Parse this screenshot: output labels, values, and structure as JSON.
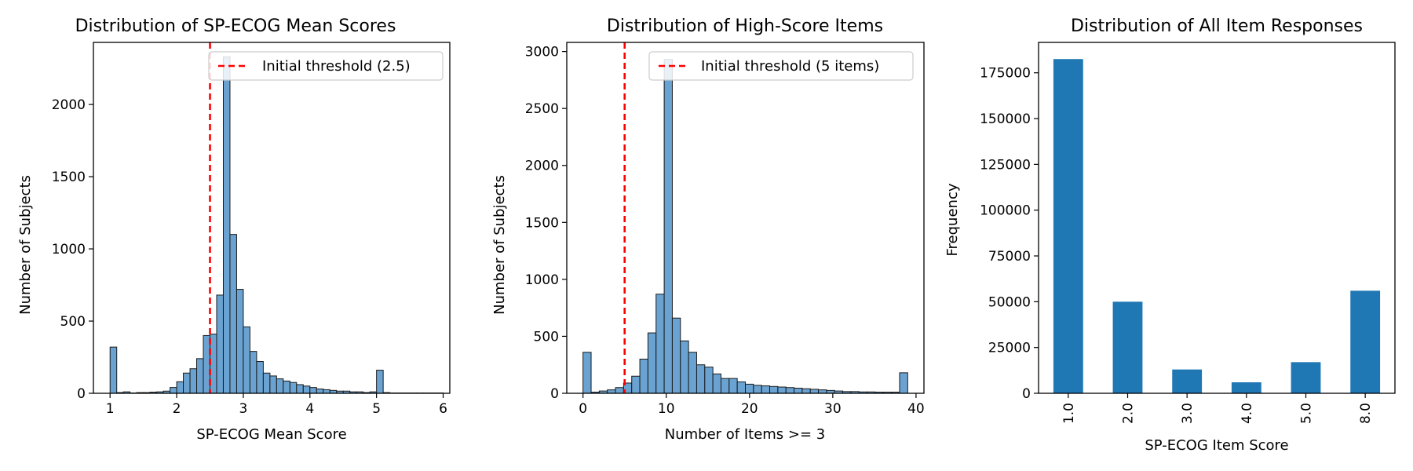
{
  "chart_data": [
    {
      "type": "bar",
      "title": "Distribution of SP-ECOG Mean Scores",
      "xlabel": "SP-ECOG Mean Score",
      "ylabel": "Number of Subjects",
      "xlim": [
        0.75,
        6.1
      ],
      "ylim": [
        0,
        2430
      ],
      "xticks": [
        1,
        2,
        3,
        4,
        5,
        6
      ],
      "yticks": [
        0,
        500,
        1000,
        1500,
        2000
      ],
      "bin_start": 1.0,
      "bin_width": 0.1,
      "values": [
        320,
        5,
        10,
        2,
        5,
        5,
        8,
        10,
        15,
        40,
        80,
        140,
        170,
        240,
        400,
        410,
        680,
        2330,
        1100,
        720,
        460,
        290,
        220,
        140,
        120,
        100,
        85,
        75,
        60,
        50,
        40,
        30,
        25,
        20,
        15,
        15,
        10,
        10,
        5,
        10,
        160,
        5,
        2,
        2,
        2,
        2,
        2,
        2,
        2,
        2
      ],
      "threshold": {
        "x": 2.5,
        "label": "Initial threshold (2.5)"
      },
      "grid": false,
      "legend_placement": "top-right",
      "colors": {
        "bar": "#6aa3d1",
        "edge": "#1a1a1a",
        "threshold": "#ff0000"
      }
    },
    {
      "type": "bar",
      "title": "Distribution of High-Score Items",
      "xlabel": "Number of Items >= 3",
      "ylabel": "Number of Subjects",
      "xlim": [
        -1.95,
        40.95
      ],
      "ylim": [
        0,
        3080
      ],
      "xticks": [
        0,
        10,
        20,
        30,
        40
      ],
      "yticks": [
        0,
        500,
        1000,
        1500,
        2000,
        2500,
        3000
      ],
      "bin_start": 0,
      "bin_width": 0.975,
      "values": [
        360,
        10,
        20,
        30,
        50,
        90,
        150,
        300,
        530,
        870,
        2930,
        660,
        460,
        360,
        250,
        230,
        170,
        130,
        130,
        100,
        80,
        70,
        65,
        60,
        55,
        50,
        45,
        40,
        35,
        30,
        25,
        20,
        15,
        15,
        12,
        12,
        10,
        10,
        10,
        180
      ],
      "threshold": {
        "x": 5,
        "label": "Initial threshold (5 items)"
      },
      "grid": false,
      "legend_placement": "top-right",
      "colors": {
        "bar": "#6aa3d1",
        "edge": "#1a1a1a",
        "threshold": "#ff0000"
      }
    },
    {
      "type": "bar",
      "title": "Distribution of All Item Responses",
      "xlabel": "SP-ECOG Item Score",
      "ylabel": "Frequency",
      "categories": [
        "1.0",
        "2.0",
        "3.0",
        "4.0",
        "5.0",
        "8.0"
      ],
      "values": [
        182500,
        50000,
        13000,
        6000,
        17000,
        56000
      ],
      "ylim": [
        0,
        191600
      ],
      "yticks": [
        0,
        25000,
        50000,
        75000,
        100000,
        125000,
        150000,
        175000
      ],
      "grid": false,
      "colors": {
        "bar": "#1f77b4"
      }
    }
  ]
}
